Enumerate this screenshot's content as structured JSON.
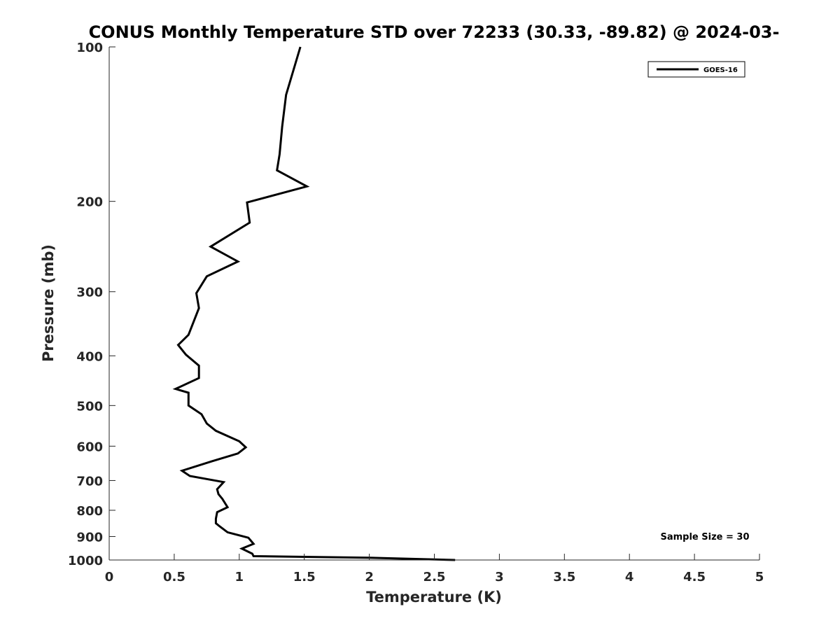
{
  "chart_data": {
    "type": "line",
    "title": "CONUS Monthly Temperature STD over 72233 (30.33, -89.82) @ 2024-03-",
    "xlabel": "Temperature (K)",
    "ylabel": "Pressure (mb)",
    "xlim": [
      0,
      5
    ],
    "ylim": [
      100,
      1000
    ],
    "yscale": "log",
    "yreversed": true,
    "grid": false,
    "legend_position": "top-right",
    "x_ticks": [
      "0",
      "0.5",
      "1",
      "1.5",
      "2",
      "2.5",
      "3",
      "3.5",
      "4",
      "4.5",
      "5"
    ],
    "y_ticks": [
      "100",
      "200",
      "300",
      "400",
      "500",
      "600",
      "700",
      "800",
      "900",
      "1000"
    ],
    "annotation": "Sample Size = 30",
    "series": [
      {
        "name": "GOES-16",
        "color": "#000000",
        "points": [
          [
            1.47,
            100
          ],
          [
            1.36,
            124
          ],
          [
            1.33,
            143
          ],
          [
            1.31,
            162
          ],
          [
            1.29,
            174
          ],
          [
            1.52,
            187
          ],
          [
            1.06,
            201
          ],
          [
            1.08,
            220
          ],
          [
            0.78,
            245
          ],
          [
            0.99,
            262
          ],
          [
            0.75,
            280
          ],
          [
            0.67,
            302
          ],
          [
            0.69,
            323
          ],
          [
            0.61,
            364
          ],
          [
            0.53,
            381
          ],
          [
            0.59,
            398
          ],
          [
            0.69,
            418
          ],
          [
            0.69,
            442
          ],
          [
            0.51,
            464
          ],
          [
            0.61,
            472
          ],
          [
            0.61,
            500
          ],
          [
            0.71,
            520
          ],
          [
            0.75,
            542
          ],
          [
            0.82,
            560
          ],
          [
            1.0,
            587
          ],
          [
            1.05,
            603
          ],
          [
            0.99,
            620
          ],
          [
            0.79,
            642
          ],
          [
            0.56,
            670
          ],
          [
            0.62,
            686
          ],
          [
            0.88,
            705
          ],
          [
            0.83,
            728
          ],
          [
            0.84,
            744
          ],
          [
            0.87,
            760
          ],
          [
            0.91,
            789
          ],
          [
            0.83,
            807
          ],
          [
            0.82,
            831
          ],
          [
            0.82,
            848
          ],
          [
            0.85,
            860
          ],
          [
            0.91,
            883
          ],
          [
            1.07,
            905
          ],
          [
            1.11,
            930
          ],
          [
            1.02,
            950
          ],
          [
            1.1,
            972
          ],
          [
            1.11,
            983
          ],
          [
            1.5,
            986
          ],
          [
            2.0,
            990
          ],
          [
            2.66,
            1000
          ]
        ]
      }
    ]
  }
}
